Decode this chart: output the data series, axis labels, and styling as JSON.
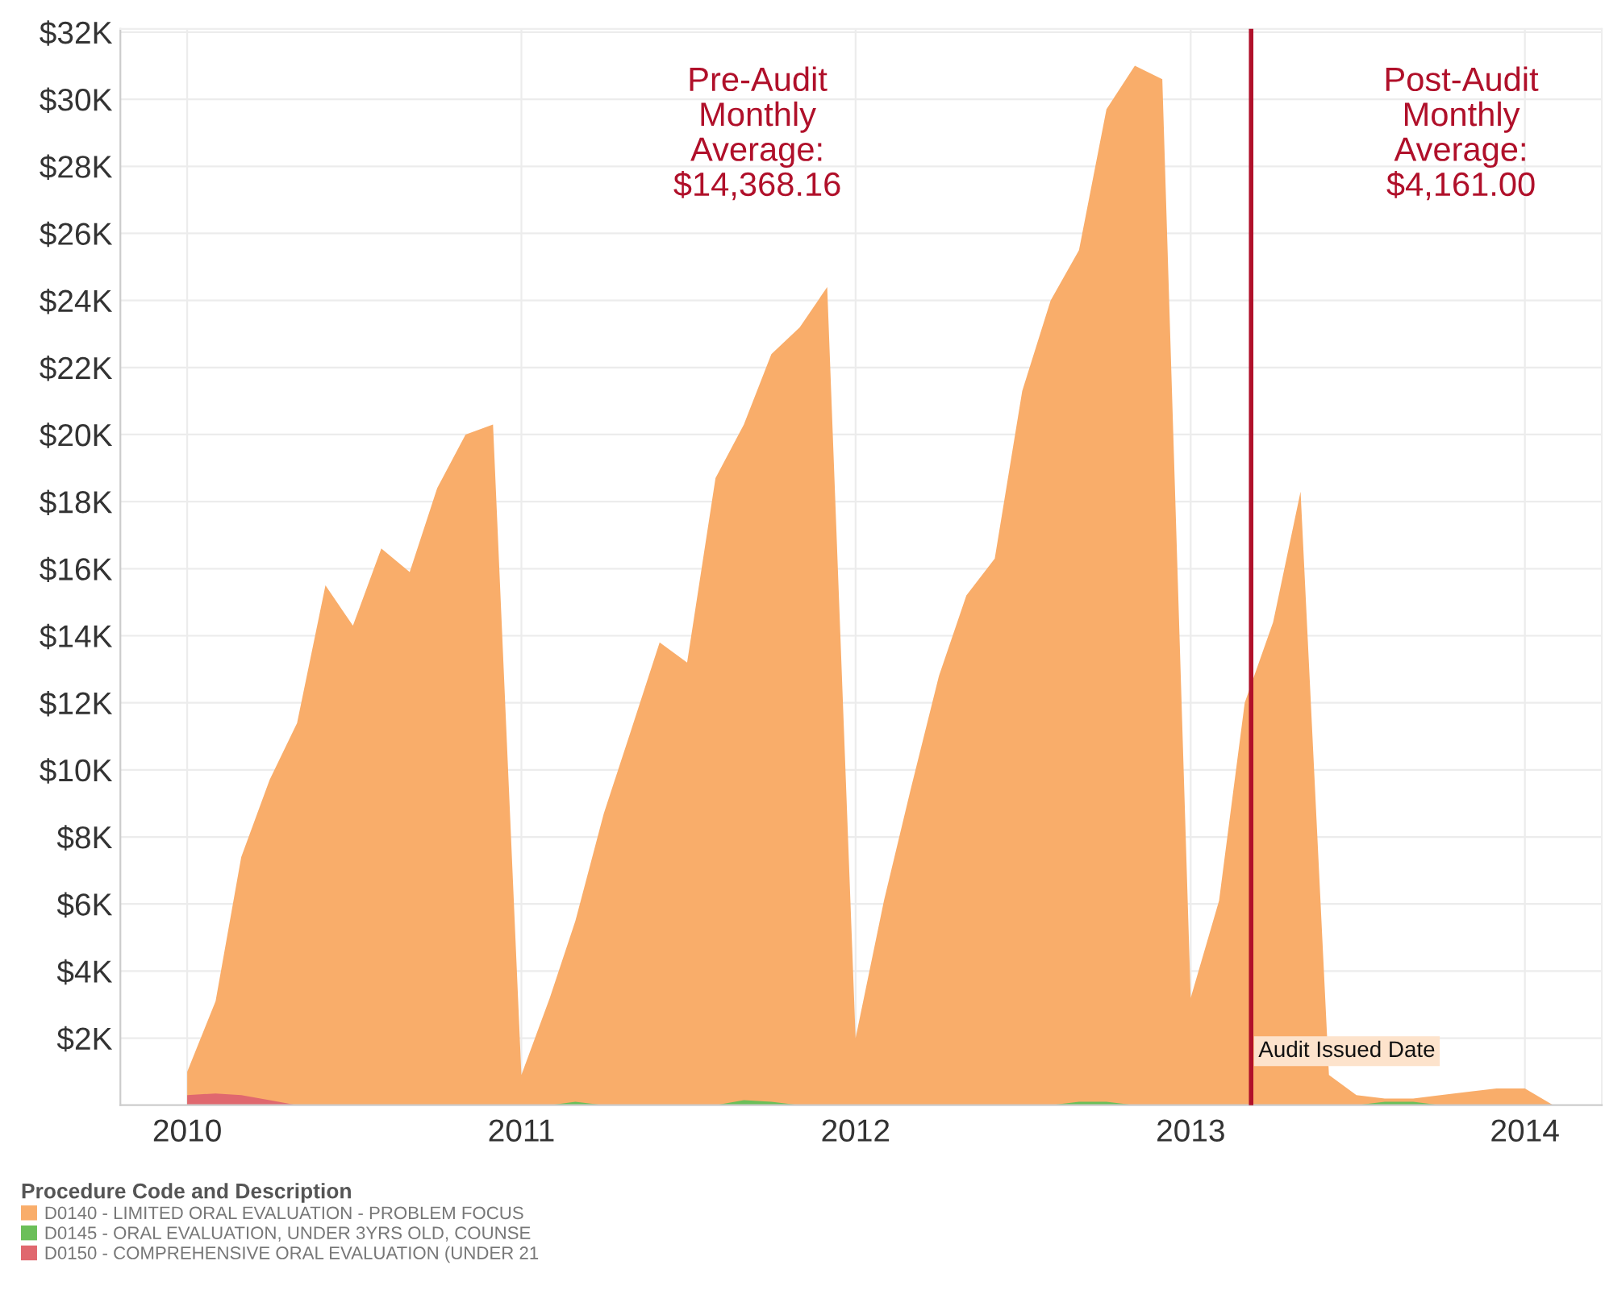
{
  "chart_data": {
    "type": "area",
    "legend_title": "Procedure Code and Description",
    "series": [
      {
        "name": "D0140 - LIMITED ORAL EVALUATION - PROBLEM FOCUS",
        "color": "#f9ad6a",
        "x": [
          "2010-01",
          "2010-02",
          "2010-03",
          "2010-04",
          "2010-05",
          "2010-06",
          "2010-07",
          "2010-08",
          "2010-09",
          "2010-10",
          "2010-11",
          "2010-12",
          "2011-01",
          "2011-02",
          "2011-03",
          "2011-04",
          "2011-05",
          "2011-06",
          "2011-07",
          "2011-08",
          "2011-09",
          "2011-10",
          "2011-11",
          "2011-12",
          "2012-01",
          "2012-02",
          "2012-03",
          "2012-04",
          "2012-05",
          "2012-06",
          "2012-07",
          "2012-08",
          "2012-09",
          "2012-10",
          "2012-11",
          "2012-12",
          "2013-01",
          "2013-02",
          "2013-03",
          "2013-04",
          "2013-05",
          "2013-06",
          "2013-07",
          "2013-08",
          "2013-09",
          "2013-10",
          "2013-11",
          "2013-12",
          "2014-01",
          "2014-02"
        ],
        "values": [
          1.0,
          3.1,
          7.4,
          9.7,
          11.4,
          15.5,
          14.3,
          16.6,
          15.9,
          18.4,
          20.0,
          20.3,
          0.9,
          3.2,
          5.5,
          8.7,
          11.2,
          13.8,
          13.2,
          18.7,
          20.3,
          22.4,
          23.2,
          24.4,
          2.0,
          6.1,
          9.4,
          12.8,
          15.2,
          16.3,
          21.3,
          24.0,
          25.5,
          29.7,
          31.0,
          30.6,
          3.2,
          6.1,
          12.0,
          14.4,
          18.3,
          0.9,
          0.3,
          0.2,
          0.2,
          0.3,
          0.4,
          0.5,
          0.5,
          0.0
        ]
      },
      {
        "name": "D0145 - ORAL EVALUATION, UNDER 3YRS OLD, COUNSE",
        "color": "#6bbf59",
        "x": [
          "2011-02",
          "2011-03",
          "2011-04",
          "2011-08",
          "2011-09",
          "2011-10",
          "2011-11",
          "2012-08",
          "2012-09",
          "2012-10",
          "2012-11",
          "2013-07",
          "2013-08",
          "2013-09",
          "2013-10"
        ],
        "values": [
          0,
          0.1,
          0,
          0,
          0.15,
          0.1,
          0,
          0,
          0.1,
          0.1,
          0,
          0,
          0.1,
          0.1,
          0
        ]
      },
      {
        "name": "D0150 - COMPREHENSIVE ORAL EVALUATION (UNDER 21",
        "color": "#e0686f",
        "x": [
          "2010-01",
          "2010-02",
          "2010-03",
          "2010-04",
          "2010-05"
        ],
        "values": [
          0.3,
          0.35,
          0.3,
          0.15,
          0
        ]
      }
    ],
    "xlim": [
      "2009-10-20",
      "2014-03-26"
    ],
    "xticks": [
      "2010",
      "2011",
      "2012",
      "2013",
      "2014"
    ],
    "ylim": [
      0,
      32.1
    ],
    "yticks": [
      {
        "value": 2,
        "label": "$2K"
      },
      {
        "value": 4,
        "label": "$4K"
      },
      {
        "value": 6,
        "label": "$6K"
      },
      {
        "value": 8,
        "label": "$8K"
      },
      {
        "value": 10,
        "label": "$10K"
      },
      {
        "value": 12,
        "label": "$12K"
      },
      {
        "value": 14,
        "label": "$14K"
      },
      {
        "value": 16,
        "label": "$16K"
      },
      {
        "value": 18,
        "label": "$18K"
      },
      {
        "value": 20,
        "label": "$20K"
      },
      {
        "value": 22,
        "label": "$22K"
      },
      {
        "value": 24,
        "label": "$24K"
      },
      {
        "value": 26,
        "label": "$26K"
      },
      {
        "value": 28,
        "label": "$28K"
      },
      {
        "value": 30,
        "label": "$30K"
      },
      {
        "value": 32,
        "label": "$32K"
      }
    ],
    "ref_lines": [
      {
        "axis": "x",
        "value": "2013-03-08",
        "label": "Audit Issued Date",
        "color": "#b0102a"
      }
    ],
    "annotations": [
      "Pre-Audit\nMonthly\nAverage:\n$14,368.16",
      "Post-Audit\nMonthly\nAverage:\n$4,161.00"
    ],
    "grid": true,
    "legend": "bottom"
  }
}
